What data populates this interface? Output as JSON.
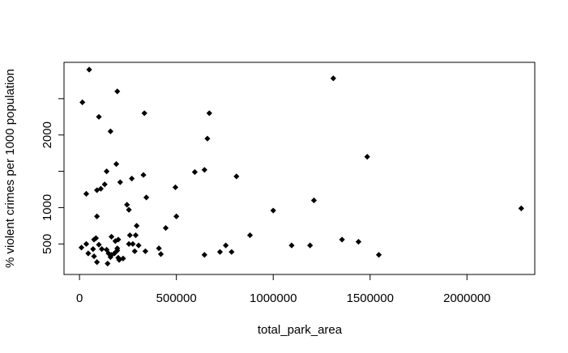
{
  "chart_data": {
    "type": "scatter",
    "title": "",
    "xlabel": "total_park_area",
    "ylabel": "% violent crimes per 1000 population",
    "xlim": [
      -80000,
      2350000
    ],
    "ylim": [
      80,
      3000
    ],
    "grid": false,
    "x_ticks": [
      0,
      500000,
      1000000,
      1500000,
      2000000
    ],
    "x_tick_labels": [
      "0",
      "500000",
      "1000000",
      "1500000",
      "2000000"
    ],
    "y_ticks": [
      500,
      1000,
      2000
    ],
    "y_tick_labels": [
      "500",
      "1000",
      "2000"
    ],
    "marker_color": "#000000",
    "marker_shape": "diamond",
    "points": [
      {
        "x": 50000,
        "y": 2900
      },
      {
        "x": 15000,
        "y": 2450
      },
      {
        "x": 195000,
        "y": 2600
      },
      {
        "x": 100000,
        "y": 2250
      },
      {
        "x": 160000,
        "y": 2050
      },
      {
        "x": 335000,
        "y": 2300
      },
      {
        "x": 670000,
        "y": 2300
      },
      {
        "x": 660000,
        "y": 1950
      },
      {
        "x": 1310000,
        "y": 2780
      },
      {
        "x": 1485000,
        "y": 1700
      },
      {
        "x": 190000,
        "y": 1600
      },
      {
        "x": 140000,
        "y": 1500
      },
      {
        "x": 330000,
        "y": 1450
      },
      {
        "x": 270000,
        "y": 1400
      },
      {
        "x": 210000,
        "y": 1350
      },
      {
        "x": 130000,
        "y": 1320
      },
      {
        "x": 110000,
        "y": 1260
      },
      {
        "x": 90000,
        "y": 1240
      },
      {
        "x": 35000,
        "y": 1190
      },
      {
        "x": 345000,
        "y": 1140
      },
      {
        "x": 495000,
        "y": 1280
      },
      {
        "x": 595000,
        "y": 1490
      },
      {
        "x": 645000,
        "y": 1520
      },
      {
        "x": 810000,
        "y": 1430
      },
      {
        "x": 1210000,
        "y": 1100
      },
      {
        "x": 1000000,
        "y": 960
      },
      {
        "x": 2280000,
        "y": 990
      },
      {
        "x": 245000,
        "y": 1040
      },
      {
        "x": 255000,
        "y": 970
      },
      {
        "x": 90000,
        "y": 880
      },
      {
        "x": 500000,
        "y": 880
      },
      {
        "x": 295000,
        "y": 750
      },
      {
        "x": 445000,
        "y": 720
      },
      {
        "x": 260000,
        "y": 620
      },
      {
        "x": 290000,
        "y": 620
      },
      {
        "x": 880000,
        "y": 620
      },
      {
        "x": 165000,
        "y": 600
      },
      {
        "x": 85000,
        "y": 580
      },
      {
        "x": 75000,
        "y": 560
      },
      {
        "x": 200000,
        "y": 560
      },
      {
        "x": 185000,
        "y": 540
      },
      {
        "x": 1355000,
        "y": 560
      },
      {
        "x": 1440000,
        "y": 530
      },
      {
        "x": 35000,
        "y": 500
      },
      {
        "x": 100000,
        "y": 490
      },
      {
        "x": 255000,
        "y": 500
      },
      {
        "x": 275000,
        "y": 500
      },
      {
        "x": 305000,
        "y": 480
      },
      {
        "x": 755000,
        "y": 480
      },
      {
        "x": 1095000,
        "y": 480
      },
      {
        "x": 1190000,
        "y": 480
      },
      {
        "x": 10000,
        "y": 450
      },
      {
        "x": 70000,
        "y": 430
      },
      {
        "x": 115000,
        "y": 430
      },
      {
        "x": 140000,
        "y": 420
      },
      {
        "x": 195000,
        "y": 440
      },
      {
        "x": 410000,
        "y": 440
      },
      {
        "x": 195000,
        "y": 410
      },
      {
        "x": 285000,
        "y": 400
      },
      {
        "x": 340000,
        "y": 400
      },
      {
        "x": 725000,
        "y": 390
      },
      {
        "x": 785000,
        "y": 390
      },
      {
        "x": 45000,
        "y": 370
      },
      {
        "x": 150000,
        "y": 370
      },
      {
        "x": 165000,
        "y": 350
      },
      {
        "x": 180000,
        "y": 370
      },
      {
        "x": 420000,
        "y": 360
      },
      {
        "x": 645000,
        "y": 350
      },
      {
        "x": 1545000,
        "y": 350
      },
      {
        "x": 75000,
        "y": 330
      },
      {
        "x": 160000,
        "y": 320
      },
      {
        "x": 200000,
        "y": 310
      },
      {
        "x": 225000,
        "y": 300
      },
      {
        "x": 205000,
        "y": 280
      },
      {
        "x": 90000,
        "y": 250
      },
      {
        "x": 145000,
        "y": 230
      }
    ]
  }
}
